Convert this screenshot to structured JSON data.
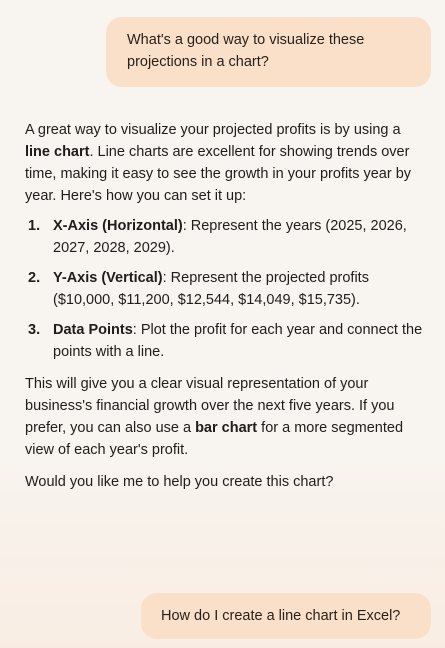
{
  "messages": {
    "user_1": "What's a good way to visualize these projections in a chart?",
    "assistant": {
      "intro_a": "A great way to visualize your projected profits is by using a ",
      "intro_bold": "line chart",
      "intro_b": ". Line charts are excellent for showing trends over time, making it easy to see the growth in your profits year by year. Here's how you can set it up:",
      "steps": [
        {
          "num": "1.",
          "term": "X-Axis (Horizontal)",
          "text": ": Represent the years (2025, 2026, 2027, 2028, 2029)."
        },
        {
          "num": "2.",
          "term": "Y-Axis (Vertical)",
          "text": ": Represent the projected profits ($10,000, $11,200, $12,544, $14,049, $15,735)."
        },
        {
          "num": "3.",
          "term": "Data Points",
          "text": ": Plot the profit for each year and connect the points with a line."
        }
      ],
      "summary_a": "This will give you a clear visual representation of your business's financial growth over the next five years. If you prefer, you can also use a ",
      "summary_bold": "bar chart",
      "summary_b": " for a more segmented view of each year's profit.",
      "question": "Would you like me to help you create this chart?"
    },
    "user_2": "How do I create a line chart in Excel?"
  }
}
